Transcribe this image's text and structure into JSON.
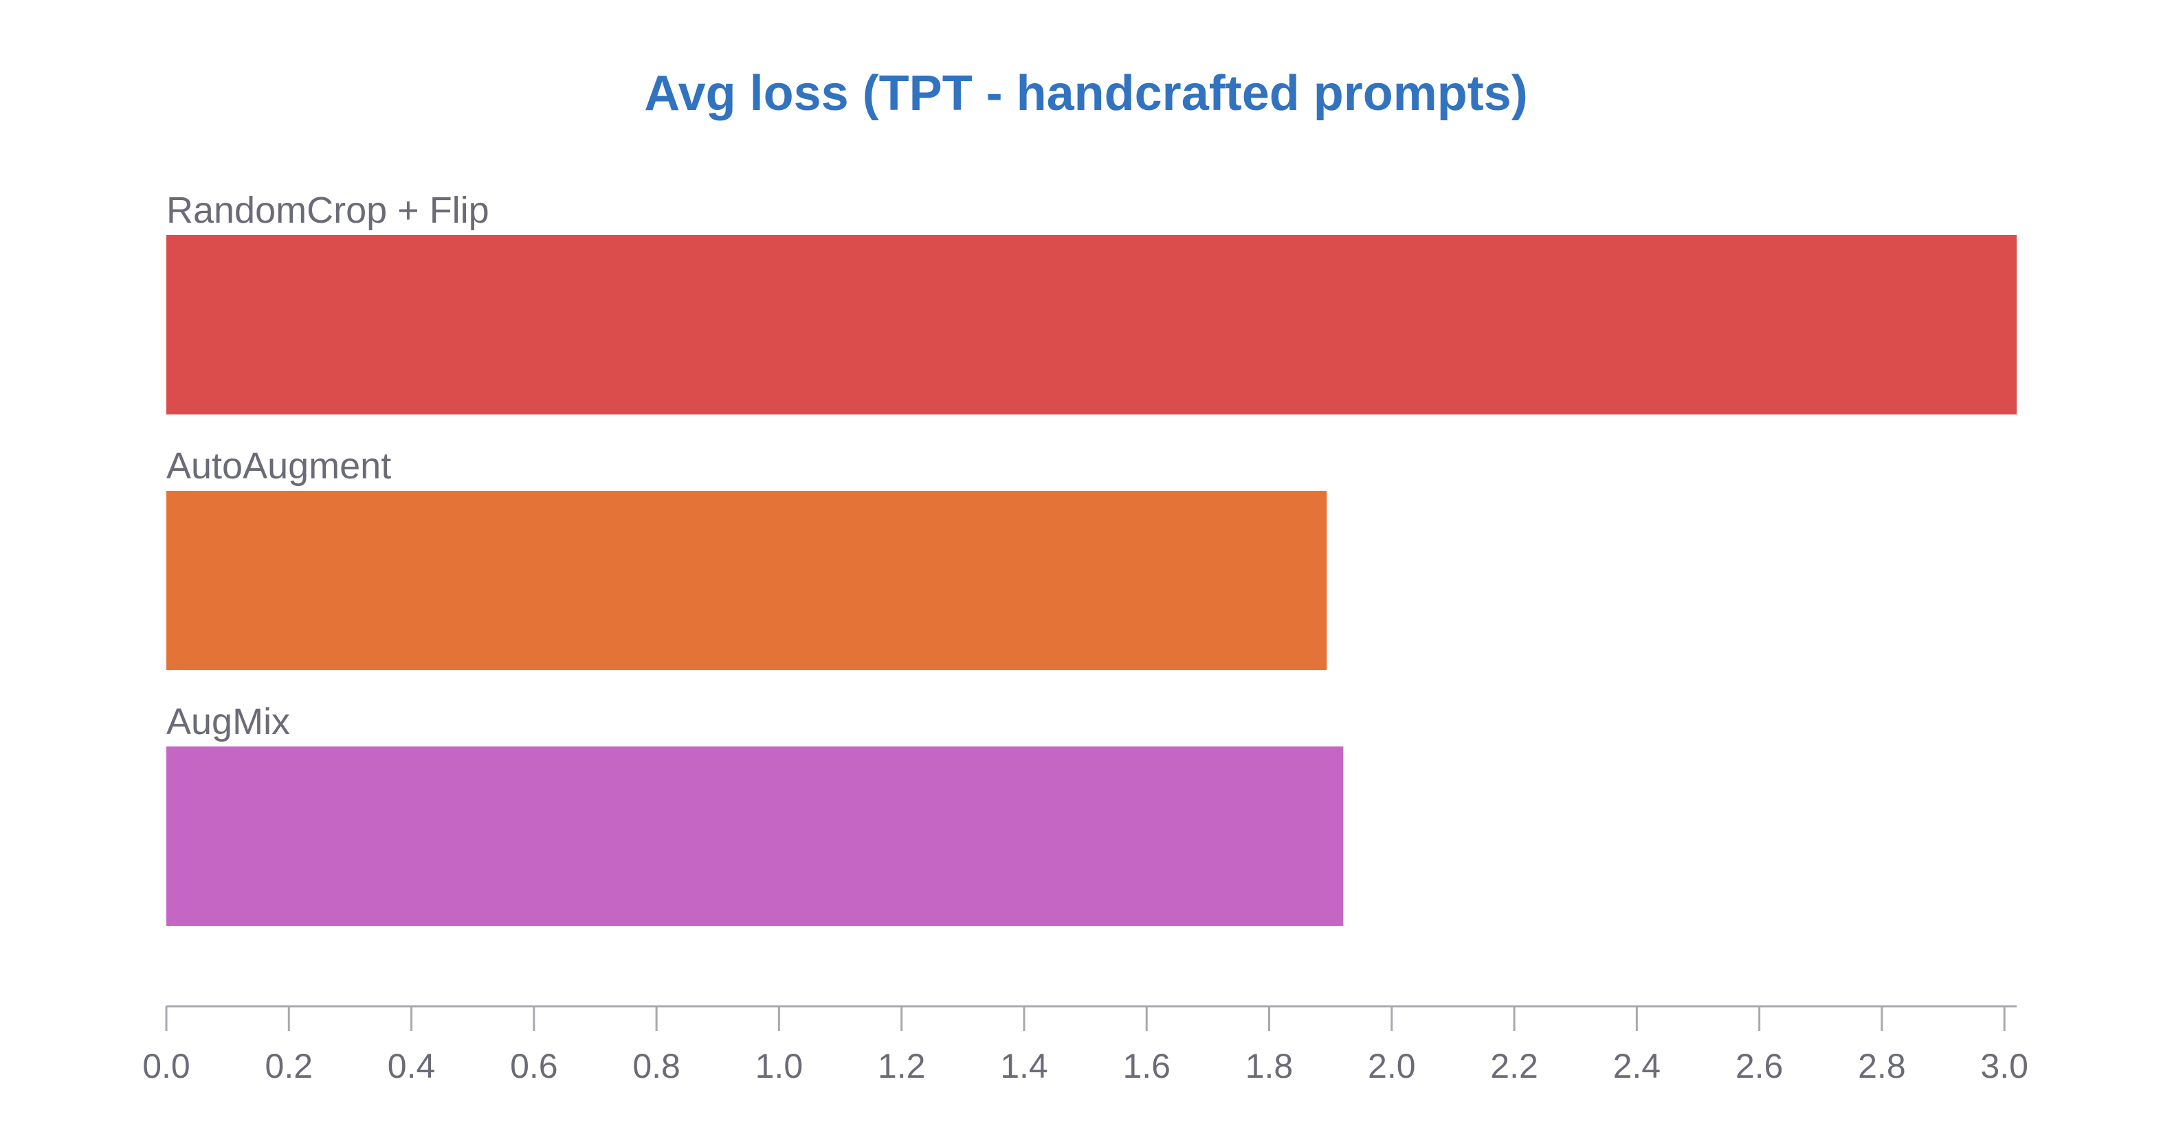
{
  "chart_data": {
    "type": "bar",
    "orientation": "horizontal",
    "title": "Avg loss (TPT - handcrafted prompts)",
    "xlabel": "",
    "ylabel": "",
    "categories": [
      "RandomCrop + Flip",
      "AutoAugment",
      "AugMix"
    ],
    "values": [
      3.02,
      1.894,
      1.921
    ],
    "colors": [
      "#db4c4c",
      "#e47337",
      "#c566c5"
    ],
    "xlim": [
      0,
      3.02
    ],
    "xticks": [
      "0.0",
      "0.2",
      "0.4",
      "0.6",
      "0.8",
      "1.0",
      "1.2",
      "1.4",
      "1.6",
      "1.8",
      "2.0",
      "2.2",
      "2.4",
      "2.6",
      "2.8",
      "3.0"
    ],
    "grid": false,
    "legend": "none"
  }
}
